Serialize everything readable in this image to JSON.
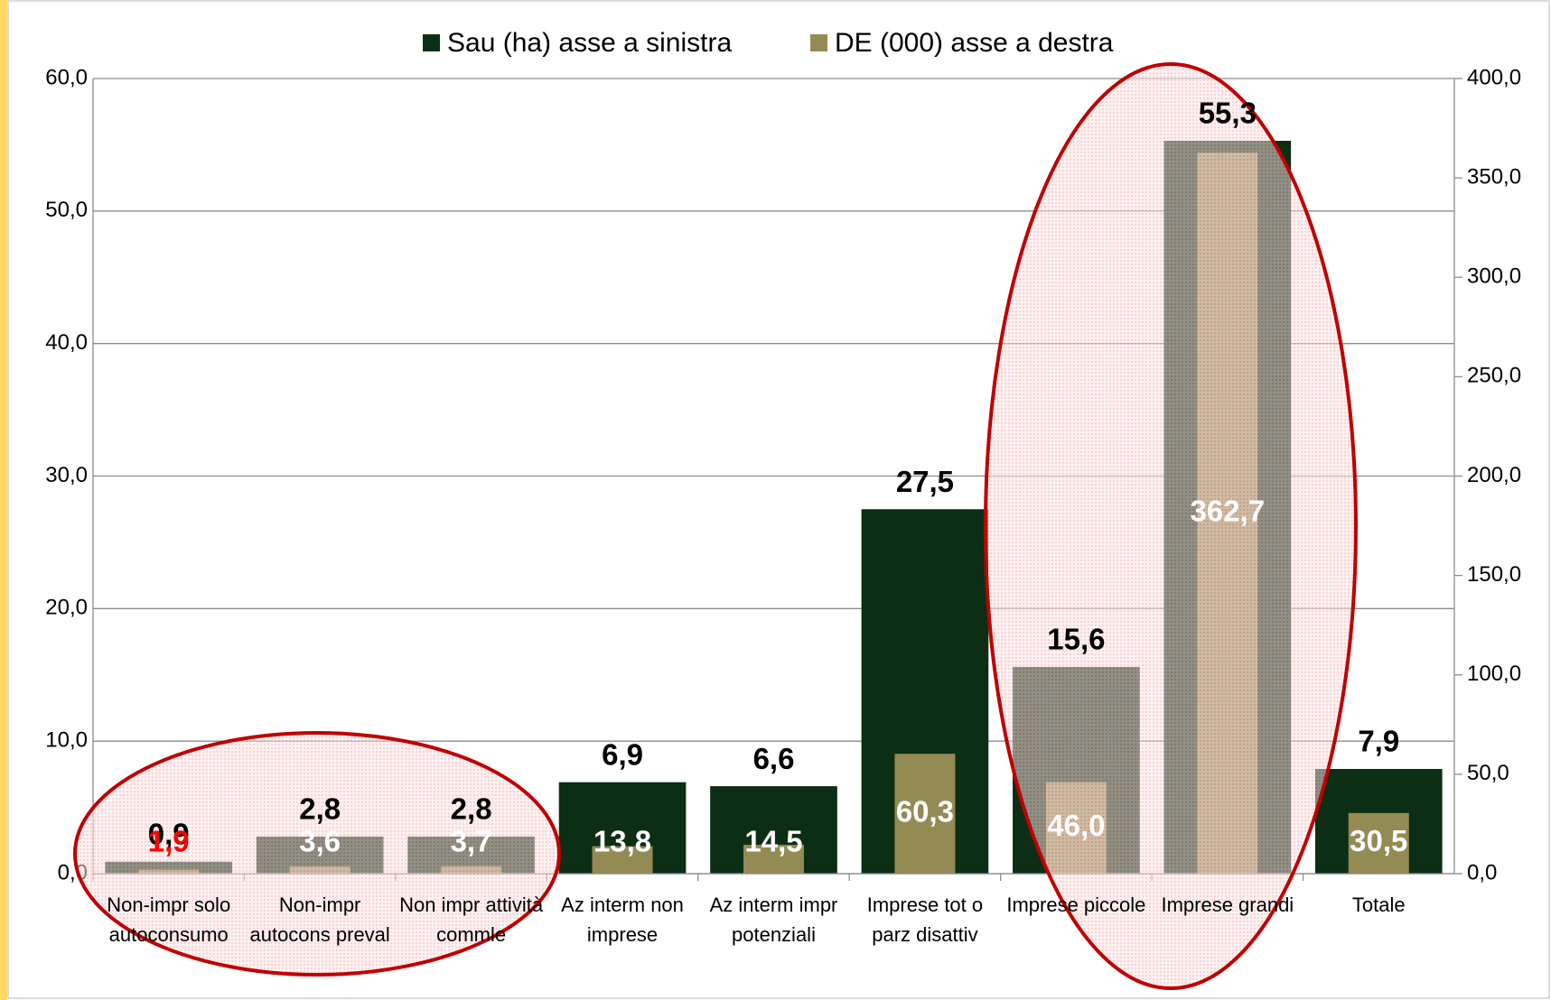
{
  "chart_data": {
    "type": "bar",
    "categories": [
      "Non-impr solo autoconsumo",
      "Non-impr autocons preval",
      "Non impr attività commle",
      "Az interm non imprese",
      "Az interm impr potenziali",
      "Imprese tot o parz disattiv",
      "Imprese piccole",
      "Imprese grandi",
      "Totale"
    ],
    "series": [
      {
        "name": "Sau (ha) asse a sinistra",
        "color": "#0c2e14",
        "axis": "y",
        "values": [
          0.9,
          2.8,
          2.8,
          6.9,
          6.6,
          27.5,
          15.6,
          55.3,
          7.9
        ],
        "value_labels": [
          "0,9",
          "2,8",
          "2,8",
          "6,9",
          "6,6",
          "27,5",
          "15,6",
          "55,3",
          "7,9"
        ]
      },
      {
        "name": "DE (000) asse a destra",
        "color": "#948a54",
        "axis": "y2",
        "values": [
          1.9,
          3.6,
          3.7,
          13.8,
          14.5,
          60.3,
          46.0,
          362.7,
          30.5
        ],
        "value_labels": [
          "1,9",
          "3,6",
          "3,7",
          "13,8",
          "14,5",
          "60,3",
          "46,0",
          "362,7",
          "30,5"
        ]
      }
    ],
    "ylim": [
      0,
      60
    ],
    "yticks": [
      {
        "value": 0,
        "label": "0,0"
      },
      {
        "value": 10,
        "label": "10,0"
      },
      {
        "value": 20,
        "label": "20,0"
      },
      {
        "value": 30,
        "label": "30,0"
      },
      {
        "value": 40,
        "label": "40,0"
      },
      {
        "value": 50,
        "label": "50,0"
      },
      {
        "value": 60,
        "label": "60,0"
      }
    ],
    "y2lim": [
      0,
      400
    ],
    "y2ticks": [
      {
        "value": 0,
        "label": "0,0"
      },
      {
        "value": 50,
        "label": "50,0"
      },
      {
        "value": 100,
        "label": "100,0"
      },
      {
        "value": 150,
        "label": "150,0"
      },
      {
        "value": 200,
        "label": "200,0"
      },
      {
        "value": 250,
        "label": "250,0"
      },
      {
        "value": 300,
        "label": "300,0"
      },
      {
        "value": 350,
        "label": "350,0"
      },
      {
        "value": 400,
        "label": "400,0"
      }
    ],
    "grid": true,
    "legend": "top"
  }
}
